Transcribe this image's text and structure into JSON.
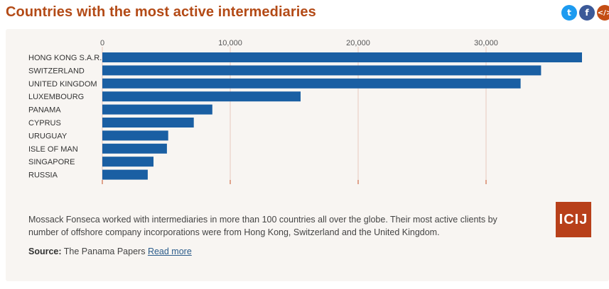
{
  "header": {
    "title": "Countries with the most active intermediaries"
  },
  "share": {
    "twitter_icon": "twitter-icon",
    "facebook_icon": "facebook-icon",
    "embed_icon": "embed-code-icon",
    "twitter_glyph": "t",
    "facebook_glyph": "f",
    "embed_glyph": "</>"
  },
  "chart_data": {
    "type": "bar",
    "orientation": "horizontal",
    "title": "Countries with the most active intermediaries",
    "xlabel": "",
    "ylabel": "",
    "xlim": [
      0,
      37500
    ],
    "ticks": [
      0,
      10000,
      20000,
      30000
    ],
    "tick_labels": [
      "0",
      "10,000",
      "20,000",
      "30,000"
    ],
    "categories": [
      "HONG KONG S.A.R.",
      "SWITZERLAND",
      "UNITED KINGDOM",
      "LUXEMBOURG",
      "PANAMA",
      "CYPRUS",
      "URUGUAY",
      "ISLE OF MAN",
      "SINGAPORE",
      "RUSSIA"
    ],
    "values": [
      37700,
      34300,
      32700,
      15500,
      8600,
      7150,
      5150,
      5050,
      4000,
      3550
    ],
    "bar_color": "#1a5fa3",
    "grid": true
  },
  "caption": {
    "text": "Mossack Fonseca worked with intermediaries in more than 100 countries all over the globe. Their most active clients by number of offshore company incorporations were from Hong Kong, Switzerland and the United Kingdom."
  },
  "source": {
    "label": "Source:",
    "text": "The Panama Papers",
    "link": "Read more"
  },
  "logo": {
    "text": "ICIJ"
  }
}
